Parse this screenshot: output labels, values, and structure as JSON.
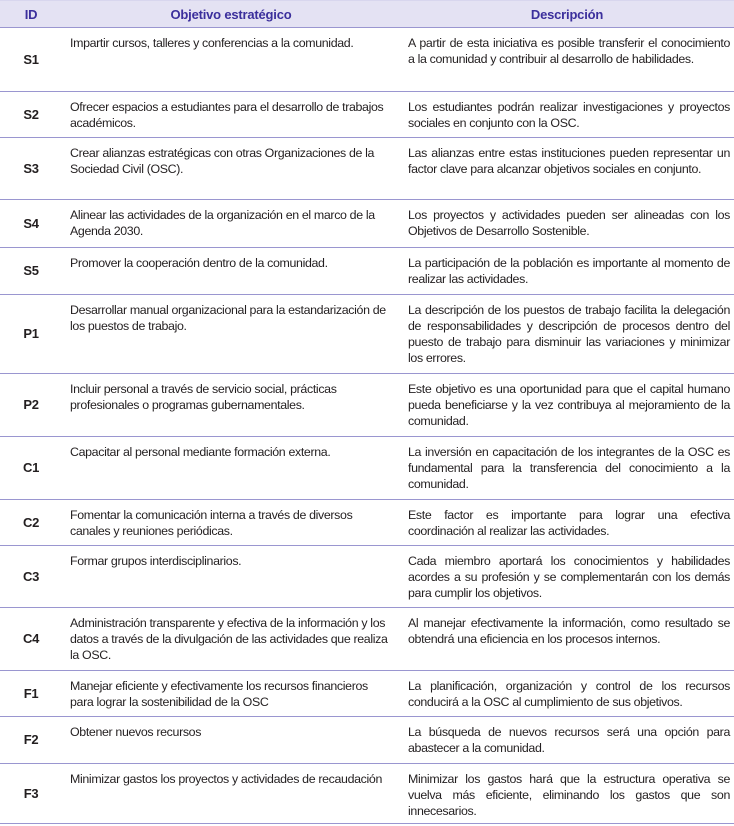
{
  "header": {
    "id": "ID",
    "objective": "Objetivo estratégico",
    "description": "Descripción"
  },
  "rows": [
    {
      "id": "S1",
      "objective": "Impartir cursos, talleres y conferencias a la comunidad.",
      "description": "A partir de esta iniciativa es posible transferir el conocimiento a la comunidad y contribuir al desarrollo de habilidades."
    },
    {
      "id": "S2",
      "objective": "Ofrecer espacios a estudiantes para el desarrollo de trabajos académicos.",
      "description": "Los estudiantes podrán realizar investigaciones y proyectos sociales en conjunto con la OSC."
    },
    {
      "id": "S3",
      "objective": "Crear alianzas estratégicas con otras Organizaciones de la Sociedad Civil (OSC).",
      "description": "Las alianzas entre estas instituciones pueden representar un factor clave para alcanzar objetivos sociales en conjunto."
    },
    {
      "id": "S4",
      "objective": "Alinear las actividades de la organización en el marco de la Agenda 2030.",
      "description": "Los proyectos y actividades pueden ser alineadas con los Objetivos de Desarrollo Sostenible."
    },
    {
      "id": "S5",
      "objective": "Promover la cooperación dentro de la comunidad.",
      "description": "La participación de la población es importante al momento de realizar las actividades."
    },
    {
      "id": "P1",
      "objective": "Desarrollar manual organizacional para la estandarización de los puestos de trabajo.",
      "description": "La descripción de los puestos de trabajo facilita la delegación de responsabilidades y descripción de procesos dentro del puesto de trabajo para disminuir las variaciones y minimizar los errores."
    },
    {
      "id": "P2",
      "objective": "Incluir personal a través de servicio social, prácticas profesionales o programas gubernamentales.",
      "description": "Este objetivo es una oportunidad para que el capital humano pueda beneficiarse y la vez contribuya al mejoramiento de la comunidad."
    },
    {
      "id": "C1",
      "objective": "Capacitar al personal mediante formación externa.",
      "description": "La inversión en capacitación de los integrantes de la OSC es fundamental para la transferencia del conocimiento a la comunidad."
    },
    {
      "id": "C2",
      "objective": "Fomentar la comunicación interna a través de diversos canales y reuniones periódicas.",
      "description": "Este factor es importante para lograr una efectiva coordinación al realizar las actividades."
    },
    {
      "id": "C3",
      "objective": "Formar grupos interdisciplinarios.",
      "description": "Cada miembro aportará los conocimientos y habilidades acordes a su profesión y se complementarán con los demás para cumplir los objetivos."
    },
    {
      "id": "C4",
      "objective": "Administración transparente y efectiva de la información y los datos a través de la divulgación de las actividades que realiza la OSC.",
      "description": "Al manejar efectivamente la información, como resultado se obtendrá una eficiencia en los procesos internos."
    },
    {
      "id": "F1",
      "objective": "Manejar eficiente y efectivamente los recursos financieros para lograr la sostenibilidad de la OSC",
      "description": "La planificación, organización y control de los recursos conducirá a la OSC al cumplimiento de sus objetivos."
    },
    {
      "id": "F2",
      "objective": "Obtener nuevos recursos",
      "description": "La búsqueda de nuevos recursos será una opción para abastecer a la comunidad."
    },
    {
      "id": "F3",
      "objective": "Minimizar gastos los proyectos y actividades de recaudación",
      "description": "Minimizar los gastos hará que la estructura operativa se vuelva más eficiente, eliminando los gastos que son innecesarios."
    }
  ]
}
